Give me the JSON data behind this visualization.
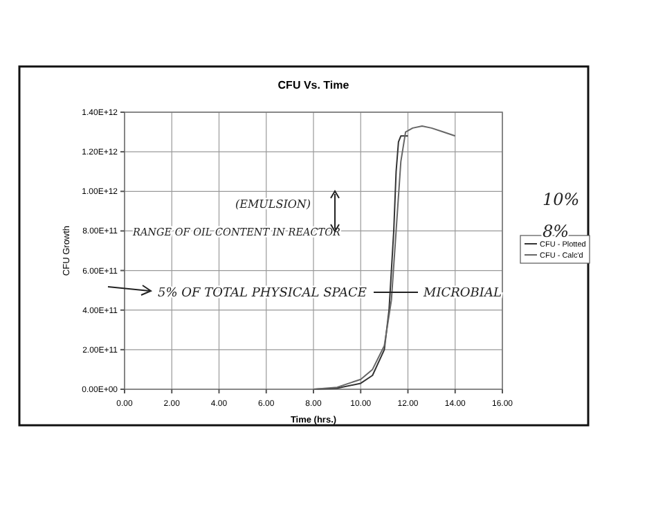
{
  "chart_data": {
    "type": "line",
    "title": "CFU Vs. Time",
    "xlabel": "Time (hrs.)",
    "ylabel": "CFU Growth",
    "xlim": [
      0,
      16
    ],
    "xticks": [
      {
        "value": 0,
        "label": "0.00"
      },
      {
        "value": 2,
        "label": "2.00"
      },
      {
        "value": 4,
        "label": "4.00"
      },
      {
        "value": 6,
        "label": "6.00"
      },
      {
        "value": 8,
        "label": "8.00"
      },
      {
        "value": 10,
        "label": "10.00"
      },
      {
        "value": 12,
        "label": "12.00"
      },
      {
        "value": 14,
        "label": "14.00"
      },
      {
        "value": 16,
        "label": "16.00"
      }
    ],
    "ylim": [
      0,
      1400000000000
    ],
    "yticks": [
      {
        "value": 0,
        "label": "0.00E+00"
      },
      {
        "value": 200000000000,
        "label": "2.00E+11"
      },
      {
        "value": 400000000000,
        "label": "4.00E+11"
      },
      {
        "value": 600000000000,
        "label": "6.00E+11"
      },
      {
        "value": 800000000000,
        "label": "8.00E+11"
      },
      {
        "value": 1000000000000,
        "label": "1.00E+12"
      },
      {
        "value": 1200000000000,
        "label": "1.20E+12"
      },
      {
        "value": 1400000000000,
        "label": "1.40E+12"
      }
    ],
    "grid": true,
    "legend": "right",
    "marker": "none",
    "line_style": "solid",
    "series": [
      {
        "name": "CFU - Plotted",
        "color": "#333333",
        "x": [
          8,
          9,
          10,
          10.5,
          11,
          11.2,
          11.4,
          11.5,
          11.6,
          11.7,
          12
        ],
        "values": [
          0,
          5000000000,
          30000000000,
          70000000000,
          200000000000,
          400000000000,
          800000000000,
          1100000000000,
          1250000000000,
          1280000000000,
          1280000000000
        ]
      },
      {
        "name": "CFU - Calc'd",
        "color": "#666666",
        "x": [
          8,
          9,
          10,
          10.5,
          11,
          11.3,
          11.5,
          11.7,
          11.9,
          12.2,
          12.6,
          13,
          13.5,
          14
        ],
        "values": [
          0,
          10000000000,
          50000000000,
          100000000000,
          220000000000,
          450000000000,
          800000000000,
          1150000000000,
          1300000000000,
          1320000000000,
          1330000000000,
          1320000000000,
          1300000000000,
          1280000000000
        ]
      }
    ],
    "annotations": [
      "(EMULSION)",
      "RANGE OF OIL CONTENT IN REACTOR",
      "10%",
      "8%",
      "5% OF TOTAL PHYSICAL SPACE",
      "MICROBIAL"
    ]
  }
}
